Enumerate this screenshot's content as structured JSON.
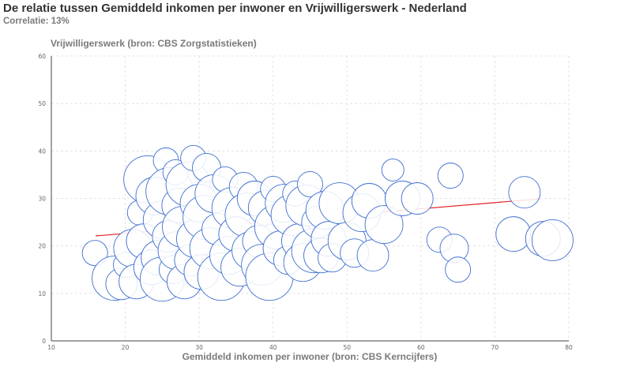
{
  "header": {
    "title": "De relatie tussen Gemiddeld inkomen per inwoner  en Vrijwilligerswerk - Nederland",
    "subtitle": "Correlatie: 13%"
  },
  "colors": {
    "bubble_stroke": "#3f6fcf",
    "trendline": "#e02020",
    "axis": "#444444",
    "grid": "#dddddd"
  },
  "chart_data": {
    "type": "scatter",
    "xlabel": "Gemiddeld inkomen per inwoner  (bron: CBS Kerncijfers)",
    "ylabel": "Vrijwilligerswerk (bron: CBS Zorgstatistieken)",
    "xlim": [
      10,
      80
    ],
    "ylim": [
      0,
      60
    ],
    "x_ticks": [
      "10",
      "20",
      "30",
      "40",
      "50",
      "60",
      "70",
      "80"
    ],
    "y_ticks": [
      "0",
      "10",
      "20",
      "30",
      "40",
      "50",
      "60"
    ],
    "grid": true,
    "trendline": {
      "x": [
        16,
        76
      ],
      "y": [
        22.1,
        29.9
      ]
    },
    "points": [
      {
        "x": 15.9,
        "y": 18.5
      },
      {
        "x": 18.5,
        "y": 13.2
      },
      {
        "x": 19.5,
        "y": 12.0
      },
      {
        "x": 20.1,
        "y": 16.0
      },
      {
        "x": 21.0,
        "y": 19.5
      },
      {
        "x": 21.5,
        "y": 12.5
      },
      {
        "x": 22.0,
        "y": 27.0
      },
      {
        "x": 22.5,
        "y": 21.0
      },
      {
        "x": 23.0,
        "y": 34.0
      },
      {
        "x": 23.5,
        "y": 15.5
      },
      {
        "x": 24.0,
        "y": 30.5
      },
      {
        "x": 24.5,
        "y": 17.5
      },
      {
        "x": 25.0,
        "y": 13.0
      },
      {
        "x": 25.0,
        "y": 25.5
      },
      {
        "x": 25.5,
        "y": 38.0
      },
      {
        "x": 25.8,
        "y": 22.0
      },
      {
        "x": 26.0,
        "y": 31.5
      },
      {
        "x": 26.5,
        "y": 15.0
      },
      {
        "x": 26.8,
        "y": 35.5
      },
      {
        "x": 27.0,
        "y": 19.0
      },
      {
        "x": 27.3,
        "y": 28.5
      },
      {
        "x": 27.8,
        "y": 24.0
      },
      {
        "x": 28.0,
        "y": 12.5
      },
      {
        "x": 28.5,
        "y": 33.0
      },
      {
        "x": 28.8,
        "y": 17.0
      },
      {
        "x": 29.2,
        "y": 38.5
      },
      {
        "x": 29.5,
        "y": 21.5
      },
      {
        "x": 30.0,
        "y": 29.0
      },
      {
        "x": 30.3,
        "y": 14.5
      },
      {
        "x": 30.8,
        "y": 26.0
      },
      {
        "x": 31.0,
        "y": 36.5
      },
      {
        "x": 31.5,
        "y": 19.5
      },
      {
        "x": 32.0,
        "y": 31.0
      },
      {
        "x": 32.5,
        "y": 23.5
      },
      {
        "x": 33.0,
        "y": 13.5
      },
      {
        "x": 33.5,
        "y": 34.0
      },
      {
        "x": 34.0,
        "y": 18.0
      },
      {
        "x": 34.5,
        "y": 28.0
      },
      {
        "x": 35.0,
        "y": 22.5
      },
      {
        "x": 35.5,
        "y": 15.5
      },
      {
        "x": 36.0,
        "y": 32.5
      },
      {
        "x": 36.5,
        "y": 26.5
      },
      {
        "x": 37.0,
        "y": 19.0
      },
      {
        "x": 37.5,
        "y": 30.0
      },
      {
        "x": 38.0,
        "y": 21.0
      },
      {
        "x": 38.5,
        "y": 16.0
      },
      {
        "x": 39.0,
        "y": 28.0
      },
      {
        "x": 39.5,
        "y": 13.5
      },
      {
        "x": 40.0,
        "y": 32.0
      },
      {
        "x": 40.5,
        "y": 24.0
      },
      {
        "x": 41.0,
        "y": 19.5
      },
      {
        "x": 41.5,
        "y": 29.0
      },
      {
        "x": 42.0,
        "y": 17.0
      },
      {
        "x": 42.5,
        "y": 26.5
      },
      {
        "x": 43.0,
        "y": 31.0
      },
      {
        "x": 43.5,
        "y": 21.0
      },
      {
        "x": 44.0,
        "y": 16.5
      },
      {
        "x": 44.5,
        "y": 28.5
      },
      {
        "x": 45.0,
        "y": 33.0
      },
      {
        "x": 45.5,
        "y": 19.0
      },
      {
        "x": 46.0,
        "y": 25.0
      },
      {
        "x": 46.5,
        "y": 18.0
      },
      {
        "x": 47.0,
        "y": 27.5
      },
      {
        "x": 47.5,
        "y": 21.5
      },
      {
        "x": 48.0,
        "y": 17.5
      },
      {
        "x": 49.0,
        "y": 29.0
      },
      {
        "x": 50.0,
        "y": 21.0
      },
      {
        "x": 51.0,
        "y": 18.5
      },
      {
        "x": 52.0,
        "y": 27.0
      },
      {
        "x": 53.0,
        "y": 29.5
      },
      {
        "x": 53.5,
        "y": 18.0
      },
      {
        "x": 55.0,
        "y": 24.5
      },
      {
        "x": 56.2,
        "y": 36.0
      },
      {
        "x": 57.5,
        "y": 30.0
      },
      {
        "x": 59.5,
        "y": 30.0
      },
      {
        "x": 62.5,
        "y": 21.3
      },
      {
        "x": 64.0,
        "y": 34.8
      },
      {
        "x": 64.5,
        "y": 19.5
      },
      {
        "x": 65.0,
        "y": 15.0
      },
      {
        "x": 72.5,
        "y": 22.5
      },
      {
        "x": 74.0,
        "y": 31.3
      },
      {
        "x": 76.5,
        "y": 21.5
      },
      {
        "x": 77.8,
        "y": 21.2
      }
    ],
    "sizes": [
      16,
      28,
      20,
      16,
      24,
      22,
      16,
      22,
      30,
      22,
      24,
      22,
      28,
      24,
      16,
      20,
      30,
      18,
      16,
      24,
      22,
      26,
      22,
      28,
      20,
      16,
      24,
      24,
      22,
      28,
      18,
      26,
      24,
      20,
      30,
      16,
      24,
      26,
      22,
      24,
      18,
      28,
      24,
      22,
      20,
      26,
      22,
      30,
      16,
      28,
      22,
      24,
      18,
      26,
      16,
      22,
      24,
      26,
      16,
      28,
      20,
      22,
      24,
      22,
      18,
      26,
      24,
      18,
      24,
      22,
      20,
      24,
      14,
      22,
      20,
      16,
      16,
      18,
      16,
      22,
      20,
      22,
      26
    ]
  }
}
